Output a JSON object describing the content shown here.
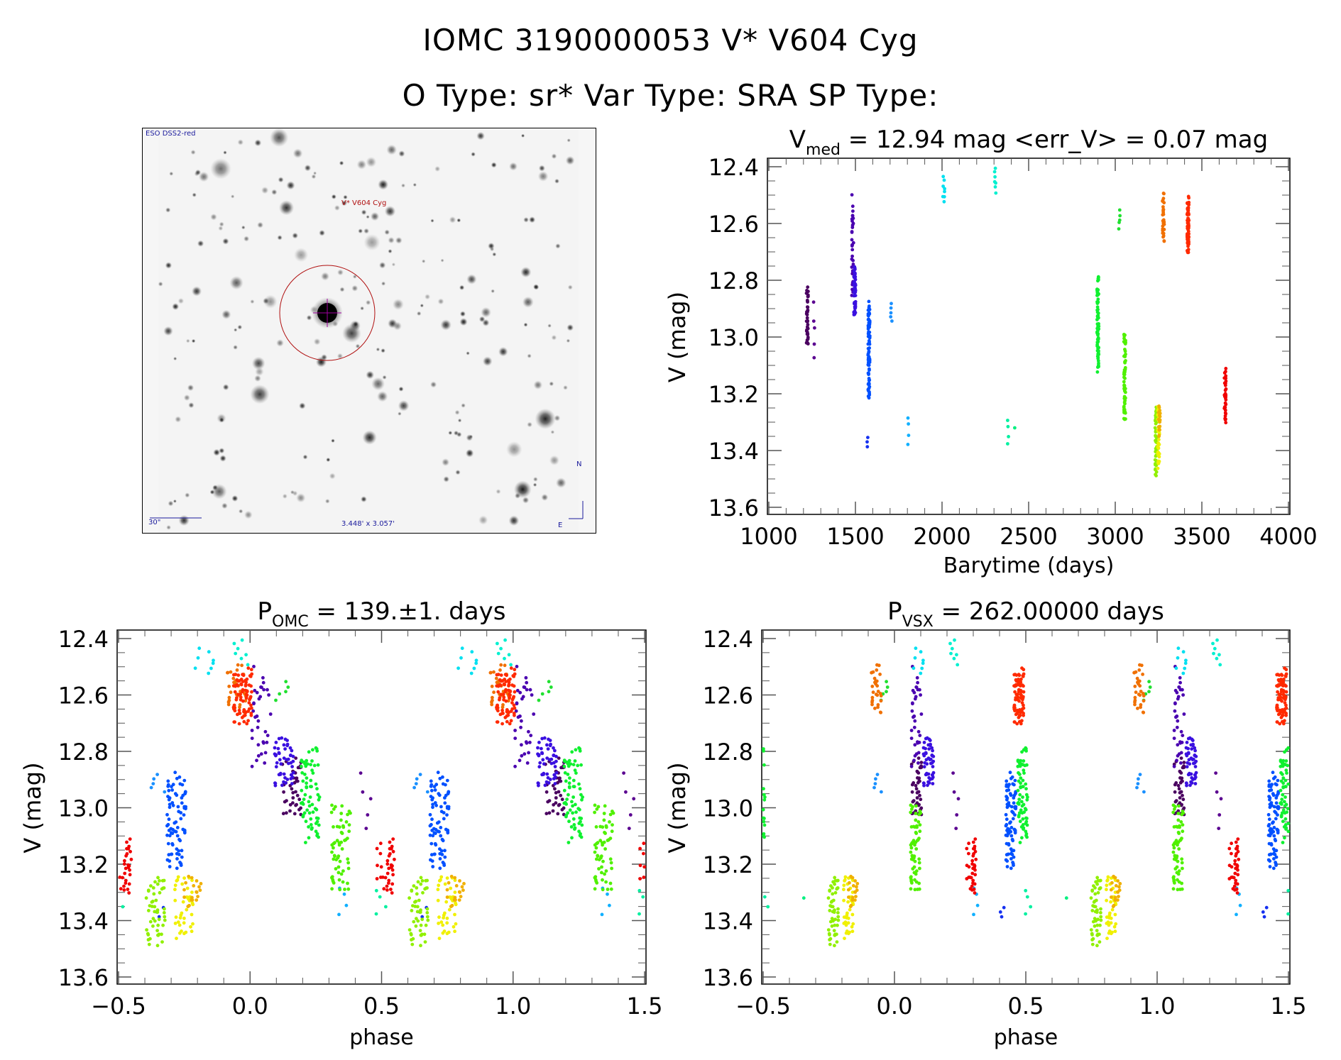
{
  "header": {
    "line1": "IOMC 3190000053    V* V604 Cyg",
    "line2": "O Type: sr*   Var Type: SRA   SP Type:"
  },
  "sky_image": {
    "survey_label": "ESO DSS2-red",
    "target_label": "V* V604 Cyg",
    "scale_label": "30\"",
    "fov_label": "3.448' x 3.057'",
    "north_label": "N",
    "east_label": "E",
    "circle_color": "#b01010",
    "label_color": "#1a1a9c"
  },
  "chart_data": [
    {
      "id": "lightcurve",
      "type": "scatter",
      "title_main": "V",
      "title_sub": "med",
      "title_rest": " = 12.94 mag <err_V> = 0.07 mag",
      "xlabel": "Barytime (days)",
      "ylabel": "V (mag)",
      "xlim": [
        1000,
        4000
      ],
      "ylim": [
        13.6,
        12.4
      ],
      "y_inverted": true,
      "xticks": [
        1000,
        1500,
        2000,
        2500,
        3000,
        3500,
        4000
      ],
      "xtick_labels": [
        "1000",
        "1500",
        "2000",
        "2500",
        "3000",
        "3500",
        "4000"
      ],
      "yticks": [
        12.4,
        12.6,
        12.8,
        13.0,
        13.2,
        13.4,
        13.6
      ],
      "ytick_labels": [
        "12.4",
        "12.6",
        "12.8",
        "13.0",
        "13.2",
        "13.4",
        "13.6"
      ],
      "grid": false,
      "legend": "none",
      "clusters": [
        {
          "day": 1222,
          "mag_min": 12.81,
          "mag_max": 13.05,
          "n": 40,
          "color": "#4a0060"
        },
        {
          "day": 1262,
          "mag_min": 12.86,
          "mag_max": 13.1,
          "n": 5,
          "color": "#5a0090"
        },
        {
          "day": 1484,
          "mag_min": 12.49,
          "mag_max": 12.88,
          "n": 35,
          "color": "#4a00b0"
        },
        {
          "day": 1496,
          "mag_min": 12.74,
          "mag_max": 12.94,
          "n": 50,
          "color": "#3a10e0"
        },
        {
          "day": 1578,
          "mag_min": 12.86,
          "mag_max": 13.23,
          "n": 80,
          "color": "#0050ff"
        },
        {
          "day": 1570,
          "mag_min": 13.35,
          "mag_max": 13.39,
          "n": 3,
          "color": "#1530f0"
        },
        {
          "day": 1707,
          "mag_min": 12.88,
          "mag_max": 12.95,
          "n": 5,
          "color": "#1a90ff"
        },
        {
          "day": 1805,
          "mag_min": 13.27,
          "mag_max": 13.39,
          "n": 4,
          "color": "#10b0ff"
        },
        {
          "day": 2010,
          "mag_min": 12.43,
          "mag_max": 12.53,
          "n": 8,
          "color": "#00e0f0"
        },
        {
          "day": 2308,
          "mag_min": 12.4,
          "mag_max": 12.5,
          "n": 7,
          "color": "#00f0d0"
        },
        {
          "day": 2380,
          "mag_min": 13.28,
          "mag_max": 13.38,
          "n": 4,
          "color": "#00f0a0"
        },
        {
          "day": 2420,
          "mag_min": 13.32,
          "mag_max": 13.32,
          "n": 1,
          "color": "#00f080"
        },
        {
          "day": 2900,
          "mag_min": 12.76,
          "mag_max": 13.14,
          "n": 70,
          "color": "#10f030"
        },
        {
          "day": 3025,
          "mag_min": 12.55,
          "mag_max": 12.62,
          "n": 5,
          "color": "#20e030"
        },
        {
          "day": 3055,
          "mag_min": 12.97,
          "mag_max": 13.32,
          "n": 60,
          "color": "#50f000"
        },
        {
          "day": 3235,
          "mag_min": 13.22,
          "mag_max": 13.51,
          "n": 50,
          "color": "#90f000"
        },
        {
          "day": 3250,
          "mag_min": 13.22,
          "mag_max": 13.48,
          "n": 40,
          "color": "#f0f000"
        },
        {
          "day": 3255,
          "mag_min": 13.24,
          "mag_max": 13.36,
          "n": 20,
          "color": "#f0b000"
        },
        {
          "day": 3278,
          "mag_min": 12.48,
          "mag_max": 12.68,
          "n": 30,
          "color": "#f07000"
        },
        {
          "day": 3420,
          "mag_min": 12.5,
          "mag_max": 12.71,
          "n": 80,
          "color": "#ff2a00"
        },
        {
          "day": 3635,
          "mag_min": 13.1,
          "mag_max": 13.32,
          "n": 35,
          "color": "#f00000"
        }
      ]
    },
    {
      "id": "phase_omc",
      "type": "scatter",
      "title_main": "P",
      "title_sub": "OMC",
      "title_rest": " = 139.±1. days",
      "period_days": 139,
      "xlabel": "phase",
      "ylabel": "V (mag)",
      "xlim": [
        -0.5,
        1.5
      ],
      "ylim": [
        13.6,
        12.4
      ],
      "y_inverted": true,
      "xticks": [
        -0.5,
        0.0,
        0.5,
        1.0,
        1.5
      ],
      "xtick_labels": [
        "−0.5",
        "0.0",
        "0.5",
        "1.0",
        "1.5"
      ],
      "yticks": [
        12.4,
        12.6,
        12.8,
        13.0,
        13.2,
        13.4,
        13.6
      ],
      "ytick_labels": [
        "12.4",
        "12.6",
        "12.8",
        "13.0",
        "13.2",
        "13.4",
        "13.6"
      ],
      "grid": false,
      "legend": "none"
    },
    {
      "id": "phase_vsx",
      "type": "scatter",
      "title_main": "P",
      "title_sub": "VSX",
      "title_rest": " = 262.00000 days",
      "period_days": 262,
      "xlabel": "phase",
      "ylabel": "V (mag)",
      "xlim": [
        -0.5,
        1.5
      ],
      "ylim": [
        13.6,
        12.4
      ],
      "y_inverted": true,
      "xticks": [
        -0.5,
        0.0,
        0.5,
        1.0,
        1.5
      ],
      "xtick_labels": [
        "−0.5",
        "0.0",
        "0.5",
        "1.0",
        "1.5"
      ],
      "yticks": [
        12.4,
        12.6,
        12.8,
        13.0,
        13.2,
        13.4,
        13.6
      ],
      "ytick_labels": [
        "12.4",
        "12.6",
        "12.8",
        "13.0",
        "13.2",
        "13.4",
        "13.6"
      ],
      "grid": false,
      "legend": "none"
    }
  ]
}
